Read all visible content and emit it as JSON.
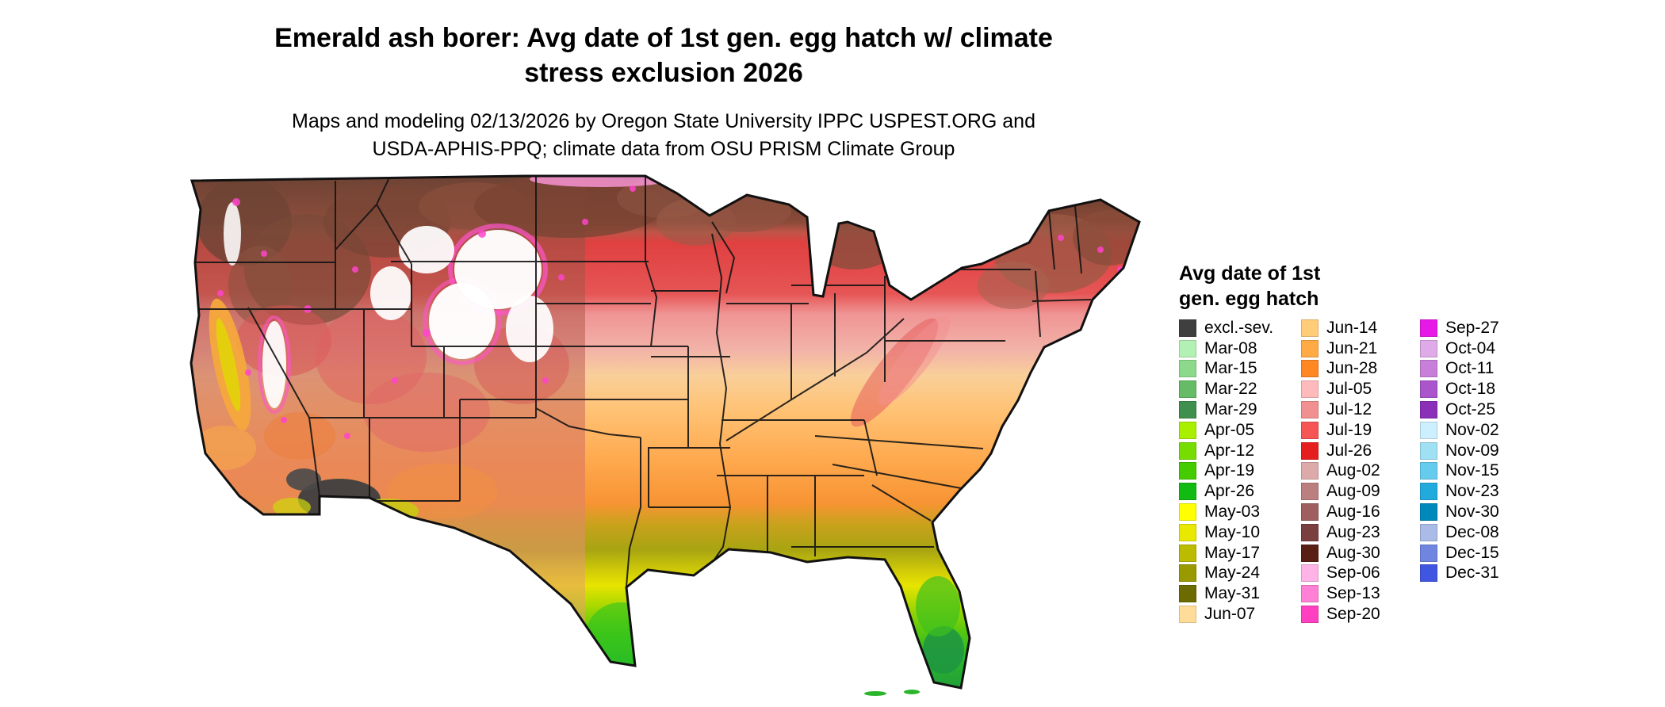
{
  "header": {
    "title_line1": "Emerald ash borer: Avg date of 1st gen. egg hatch w/ climate",
    "title_line2": "stress exclusion 2026",
    "subtitle_line1": "Maps and modeling 02/13/2026 by Oregon State University IPPC USPEST.ORG and",
    "subtitle_line2": "USDA-APHIS-PPQ; climate data from OSU PRISM Climate Group"
  },
  "legend": {
    "title_line1": "Avg date of 1st",
    "title_line2": "gen. egg hatch",
    "columns": [
      {
        "entries": [
          {
            "label": "excl.-sev.",
            "color": "#3f3f3f"
          },
          {
            "label": "Mar-08",
            "color": "#b3f0b3"
          },
          {
            "label": "Mar-15",
            "color": "#8cd98c"
          },
          {
            "label": "Mar-22",
            "color": "#66bb66"
          },
          {
            "label": "Mar-29",
            "color": "#3f8f4f"
          },
          {
            "label": "Apr-05",
            "color": "#aaee00"
          },
          {
            "label": "Apr-12",
            "color": "#77dd00"
          },
          {
            "label": "Apr-19",
            "color": "#44cc00"
          },
          {
            "label": "Apr-26",
            "color": "#11bb11"
          },
          {
            "label": "May-03",
            "color": "#ffff00"
          },
          {
            "label": "May-10",
            "color": "#e8e800"
          },
          {
            "label": "May-17",
            "color": "#bbbb00"
          },
          {
            "label": "May-24",
            "color": "#999900"
          },
          {
            "label": "May-31",
            "color": "#6b6b00"
          },
          {
            "label": "Jun-07",
            "color": "#ffdd99"
          }
        ]
      },
      {
        "entries": [
          {
            "label": "Jun-14",
            "color": "#ffcc77"
          },
          {
            "label": "Jun-21",
            "color": "#ffaa44"
          },
          {
            "label": "Jun-28",
            "color": "#ff8822"
          },
          {
            "label": "Jul-05",
            "color": "#ffbbbb"
          },
          {
            "label": "Jul-12",
            "color": "#f09090"
          },
          {
            "label": "Jul-19",
            "color": "#f55555"
          },
          {
            "label": "Jul-26",
            "color": "#e51f1f"
          },
          {
            "label": "Aug-02",
            "color": "#ddaaaa"
          },
          {
            "label": "Aug-09",
            "color": "#bb7f7f"
          },
          {
            "label": "Aug-16",
            "color": "#9f5f5f"
          },
          {
            "label": "Aug-23",
            "color": "#7a4040"
          },
          {
            "label": "Aug-30",
            "color": "#5a1f14"
          },
          {
            "label": "Sep-06",
            "color": "#ffb3e6"
          },
          {
            "label": "Sep-13",
            "color": "#ff80d5"
          },
          {
            "label": "Sep-20",
            "color": "#ff40c0"
          }
        ]
      },
      {
        "entries": [
          {
            "label": "Sep-27",
            "color": "#e619e6"
          },
          {
            "label": "Oct-04",
            "color": "#dfaae8"
          },
          {
            "label": "Oct-11",
            "color": "#c77fd9"
          },
          {
            "label": "Oct-18",
            "color": "#aa55cc"
          },
          {
            "label": "Oct-25",
            "color": "#8a2fb8"
          },
          {
            "label": "Nov-02",
            "color": "#ccf0ff"
          },
          {
            "label": "Nov-09",
            "color": "#a0e0f5"
          },
          {
            "label": "Nov-15",
            "color": "#66ccee"
          },
          {
            "label": "Nov-23",
            "color": "#22aadd"
          },
          {
            "label": "Nov-30",
            "color": "#0088bb"
          },
          {
            "label": "Dec-08",
            "color": "#aabbe8"
          },
          {
            "label": "Dec-15",
            "color": "#6f85e0"
          },
          {
            "label": "Dec-31",
            "color": "#4055e0"
          }
        ]
      }
    ]
  }
}
